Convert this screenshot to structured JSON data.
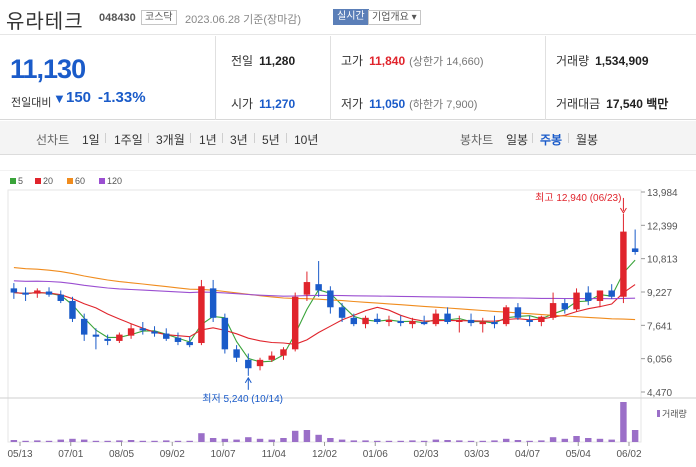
{
  "header": {
    "name": "유라테크",
    "code": "048430",
    "market": "코스닥",
    "date": "2023.06.28 기준(장마감)",
    "realtime": "실시간",
    "info": "기업개요 ▾"
  },
  "summary": {
    "price": "11,130",
    "change_label": "전일대비",
    "change_arrow": "▼",
    "change": "150",
    "change_pct": "-1.33%",
    "prev_close_label": "전일",
    "prev_close": "11,280",
    "high_label": "고가",
    "high": "11,840",
    "upper_limit": "(상한가 14,660)",
    "volume_label": "거래량",
    "volume": "1,534,909",
    "open_label": "시가",
    "open": "11,270",
    "low_label": "저가",
    "low": "11,050",
    "lower_limit": "(하한가 7,900)",
    "amount_label": "거래대금",
    "amount": "17,540 백만"
  },
  "tabs": {
    "line_label": "선차트",
    "line_items": [
      "1일",
      "1주일",
      "3개월",
      "1년",
      "3년",
      "5년",
      "10년"
    ],
    "candle_label": "봉차트",
    "candle_items": [
      "일봉",
      "주봉",
      "월봉"
    ],
    "active_candle": "주봉"
  },
  "chart_data": {
    "type": "candlestick",
    "legend": [
      {
        "name": "5",
        "color": "#3aa43a"
      },
      {
        "name": "20",
        "color": "#e0242c"
      },
      {
        "name": "60",
        "color": "#f08c1e"
      },
      {
        "name": "120",
        "color": "#9b4fd1"
      }
    ],
    "y_ticks": [
      13984,
      12399,
      10813,
      9227,
      7641,
      6056,
      4470
    ],
    "x_ticks": [
      "05/13",
      "07/01",
      "08/05",
      "09/02",
      "10/07",
      "11/04",
      "12/02",
      "01/06",
      "02/03",
      "03/03",
      "04/07",
      "05/04",
      "06/02"
    ],
    "ylim": [
      4470,
      13984
    ],
    "annotation_high": "최고 12,940 (06/23)",
    "annotation_low": "최저 5,240 (10/14)",
    "volume_label": "거래량",
    "up_color": "#e0242c",
    "down_color": "#1a5bc9",
    "candles": [
      [
        9400,
        9650,
        8900,
        9200
      ],
      [
        9200,
        9450,
        8800,
        9100
      ],
      [
        9150,
        9400,
        8950,
        9300
      ],
      [
        9250,
        9450,
        9000,
        9100
      ],
      [
        9100,
        9300,
        8700,
        8800
      ],
      [
        8800,
        9000,
        7800,
        7950
      ],
      [
        7950,
        8200,
        6900,
        7200
      ],
      [
        7200,
        7500,
        6500,
        7100
      ],
      [
        7000,
        7200,
        6700,
        6900
      ],
      [
        6900,
        7300,
        6800,
        7200
      ],
      [
        7150,
        7700,
        7000,
        7500
      ],
      [
        7500,
        7800,
        7200,
        7400
      ],
      [
        7350,
        7600,
        7100,
        7250
      ],
      [
        7250,
        7500,
        6900,
        7000
      ],
      [
        7050,
        7300,
        6700,
        6850
      ],
      [
        6850,
        7100,
        6600,
        6700
      ],
      [
        6800,
        9800,
        6700,
        9500
      ],
      [
        9400,
        9800,
        7800,
        8000
      ],
      [
        8000,
        8200,
        6300,
        6500
      ],
      [
        6500,
        6700,
        5900,
        6100
      ],
      [
        6000,
        6300,
        5240,
        5600
      ],
      [
        5700,
        6100,
        5500,
        6000
      ],
      [
        6000,
        6400,
        5900,
        6200
      ],
      [
        6200,
        6600,
        6000,
        6500
      ],
      [
        6500,
        9200,
        6400,
        9000
      ],
      [
        9100,
        10200,
        8800,
        9700
      ],
      [
        9600,
        10700,
        9000,
        9300
      ],
      [
        9300,
        9500,
        8200,
        8500
      ],
      [
        8500,
        8700,
        7800,
        8000
      ],
      [
        8000,
        8200,
        7600,
        7700
      ],
      [
        7700,
        8100,
        7500,
        8000
      ],
      [
        7950,
        8200,
        7700,
        7800
      ],
      [
        7800,
        8100,
        7600,
        7900
      ],
      [
        7850,
        8100,
        7600,
        7750
      ],
      [
        7700,
        8000,
        7500,
        7850
      ],
      [
        7800,
        8100,
        7650,
        7700
      ],
      [
        7700,
        8400,
        7600,
        8200
      ],
      [
        8200,
        8500,
        7700,
        7800
      ],
      [
        7800,
        8100,
        7300,
        7900
      ],
      [
        7900,
        8200,
        7600,
        7750
      ],
      [
        7700,
        8000,
        7300,
        7800
      ],
      [
        7800,
        8100,
        7500,
        7700
      ],
      [
        7700,
        8600,
        7600,
        8500
      ],
      [
        8500,
        8700,
        7900,
        8000
      ],
      [
        7900,
        8100,
        7600,
        7800
      ],
      [
        7800,
        8100,
        7600,
        8050
      ],
      [
        8000,
        9200,
        7900,
        8700
      ],
      [
        8700,
        8900,
        8200,
        8400
      ],
      [
        8400,
        9400,
        8300,
        9200
      ],
      [
        9200,
        9500,
        8600,
        8800
      ],
      [
        8800,
        9300,
        8500,
        9300
      ],
      [
        9300,
        9600,
        8900,
        9000
      ],
      [
        9000,
        12940,
        8700,
        12100
      ],
      [
        11300,
        12200,
        11000,
        11130
      ]
    ],
    "volumes": [
      5,
      3,
      4,
      3,
      6,
      8,
      6,
      3,
      3,
      4,
      5,
      3,
      3,
      4,
      3,
      3,
      22,
      10,
      8,
      6,
      12,
      8,
      6,
      10,
      28,
      30,
      18,
      10,
      6,
      4,
      4,
      3,
      3,
      3,
      4,
      3,
      6,
      5,
      4,
      3,
      3,
      4,
      8,
      5,
      3,
      4,
      12,
      8,
      15,
      10,
      8,
      6,
      100,
      30
    ]
  }
}
